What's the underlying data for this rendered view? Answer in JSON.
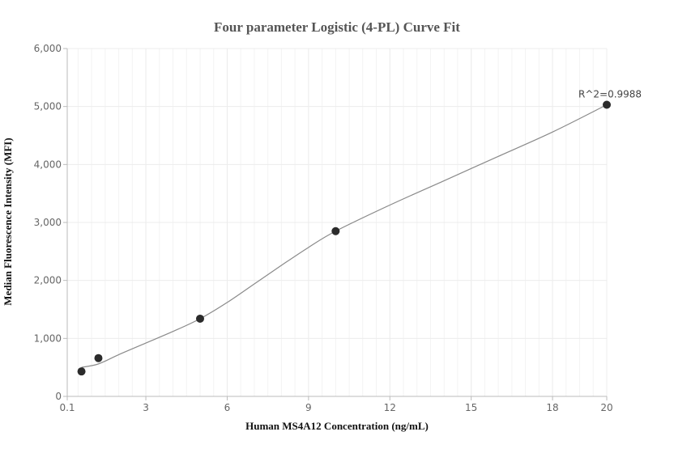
{
  "chart_data": {
    "type": "scatter",
    "title": "Four parameter Logistic (4-PL) Curve Fit",
    "xlabel": "Human MS4A12 Concentration (ng/mL)",
    "ylabel": "Median Fluorescence Intensity (MFI)",
    "xlim": [
      0.1,
      20
    ],
    "ylim": [
      0,
      6000
    ],
    "x_ticks": [
      0.1,
      3,
      6,
      9,
      12,
      15,
      18,
      20
    ],
    "x_tick_labels": [
      "0.1",
      "3",
      "6",
      "9",
      "12",
      "15",
      "18",
      "20"
    ],
    "y_ticks": [
      0,
      1000,
      2000,
      3000,
      4000,
      5000,
      6000
    ],
    "y_tick_labels": [
      "0",
      "1,000",
      "2,000",
      "3,000",
      "4,000",
      "5,000",
      "6,000"
    ],
    "grid": true,
    "points": {
      "x": [
        0.625,
        1.25,
        5,
        10,
        20
      ],
      "y": [
        430,
        660,
        1340,
        2850,
        5030
      ]
    },
    "fit_curve": {
      "x": [
        0.625,
        1.25,
        2,
        3,
        4,
        5,
        6,
        7,
        8,
        9,
        10,
        12,
        14,
        16,
        18,
        20
      ],
      "y": [
        500,
        560,
        720,
        920,
        1120,
        1340,
        1620,
        1940,
        2260,
        2570,
        2850,
        3300,
        3720,
        4140,
        4560,
        5030
      ]
    },
    "annotations": [
      {
        "text": "R^2=0.9988",
        "x": 20,
        "y": 5030
      }
    ],
    "colors": {
      "points": "#2b2b2b",
      "curve": "#8a8a8a",
      "grid": "#ececec",
      "axis": "#bbbbbb"
    }
  }
}
